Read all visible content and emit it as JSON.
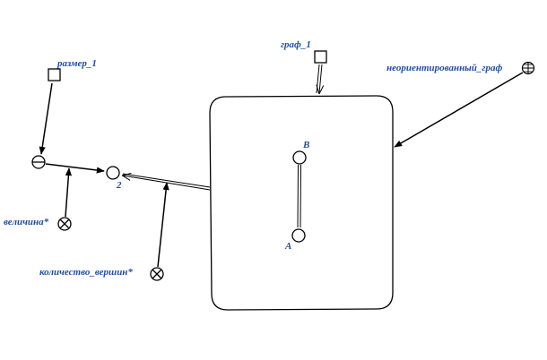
{
  "labels": {
    "size": "размер_1",
    "graph": "граф_1",
    "undirected": "неориентированный_граф",
    "magnitude": "величина*",
    "vertex_count": "количество_вершин*",
    "node_two": "2",
    "vertex_b": "B",
    "vertex_a": "A"
  },
  "colors": {
    "label": "#1f4e9c",
    "stroke": "#000000"
  }
}
